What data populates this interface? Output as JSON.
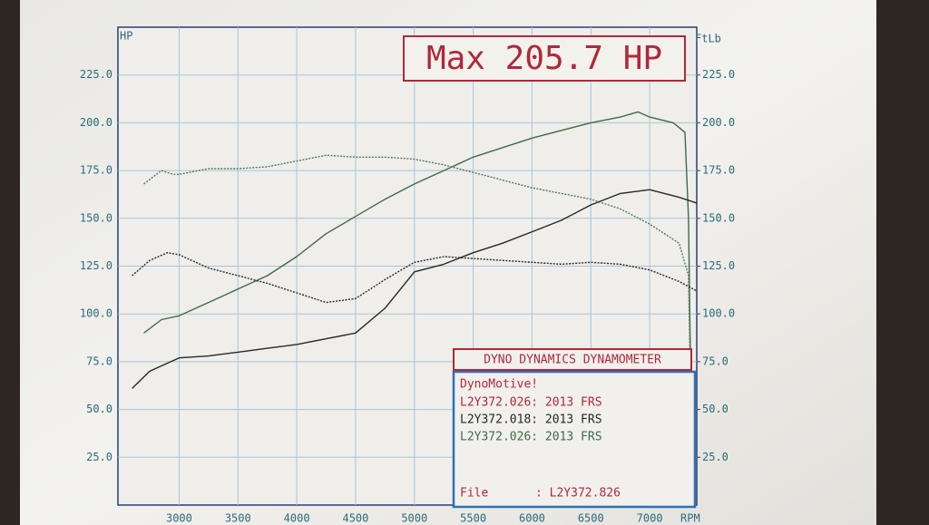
{
  "chart_data": {
    "type": "line",
    "title": "Max 205.7 HP",
    "y_label": "HP",
    "y2_label": "FtLb",
    "x_label": "RPM",
    "xlim": [
      2480,
      7400
    ],
    "xticks": [
      3000,
      3500,
      4000,
      4500,
      5000,
      5500,
      6000,
      6500,
      7000
    ],
    "ylim": [
      0,
      250
    ],
    "yticks": [
      {
        "value": 25,
        "label": "25.0"
      },
      {
        "value": 50,
        "label": "50.0"
      },
      {
        "value": 75,
        "label": "75.0"
      },
      {
        "value": 100,
        "label": "100.0"
      },
      {
        "value": 125,
        "label": "125.0"
      },
      {
        "value": 150,
        "label": "150.0"
      },
      {
        "value": 175,
        "label": "175.0"
      },
      {
        "value": 200,
        "label": "200.0"
      },
      {
        "value": 225,
        "label": "225.0"
      }
    ],
    "y2lim": [
      0,
      250
    ],
    "y2ticks": [
      {
        "value": 25,
        "label": "25.0"
      },
      {
        "value": 50,
        "label": "50.0"
      },
      {
        "value": 75,
        "label": "75.0"
      },
      {
        "value": 100,
        "label": "100.0"
      },
      {
        "value": 125,
        "label": "125.0"
      },
      {
        "value": 150,
        "label": "150.0"
      },
      {
        "value": 175,
        "label": "175.0"
      },
      {
        "value": 200,
        "label": "200.0"
      },
      {
        "value": 225,
        "label": "225.0"
      }
    ],
    "grid": true,
    "series": [
      {
        "color": "#3f6a4c",
        "style": "solid",
        "x": [
          2700,
          2850,
          3000,
          3250,
          3500,
          3750,
          4000,
          4250,
          4500,
          4750,
          5000,
          5250,
          5500,
          5750,
          6000,
          6250,
          6500,
          6750,
          6900,
          7000,
          7200,
          7300,
          7330,
          7350
        ],
        "values": [
          90,
          97,
          99,
          106,
          113,
          120,
          130,
          142,
          151,
          160,
          168,
          175,
          182,
          187,
          192,
          196,
          200,
          203,
          205.7,
          203,
          200,
          195,
          150,
          60
        ]
      },
      {
        "color": "#4f7a5c",
        "style": "dotted",
        "x": [
          2700,
          2850,
          2950,
          3000,
          3250,
          3500,
          3750,
          4000,
          4250,
          4500,
          4750,
          5000,
          5250,
          5500,
          5750,
          6000,
          6250,
          6500,
          6750,
          7000,
          7250,
          7330,
          7350
        ],
        "values": [
          168,
          175,
          173,
          173,
          176,
          176,
          177,
          180,
          183,
          182,
          182,
          181,
          178,
          174,
          170,
          166,
          163,
          160,
          155,
          147,
          137,
          120,
          50
        ]
      },
      {
        "color": "#2a2622",
        "style": "dotted",
        "x": [
          2600,
          2750,
          2900,
          3000,
          3250,
          3500,
          3750,
          4000,
          4250,
          4500,
          4750,
          5000,
          5250,
          5500,
          5750,
          6000,
          6250,
          6500,
          6750,
          7000,
          7250,
          7400
        ],
        "values": [
          120,
          128,
          132,
          131,
          124,
          120,
          116,
          111,
          106,
          108,
          118,
          127,
          130,
          129,
          128,
          127,
          126,
          127,
          126,
          123,
          117,
          112
        ]
      },
      {
        "color": "#2a2622",
        "style": "solid",
        "x": [
          2600,
          2750,
          3000,
          3250,
          3500,
          3750,
          4000,
          4250,
          4500,
          4750,
          5000,
          5250,
          5500,
          5750,
          6000,
          6250,
          6500,
          6750,
          7000,
          7250,
          7400
        ],
        "values": [
          61,
          70,
          77,
          78,
          80,
          82,
          84,
          87,
          90,
          103,
          122,
          126,
          132,
          137,
          143,
          149,
          157,
          163,
          165,
          161,
          158
        ]
      }
    ],
    "info_box": {
      "title": "DYNO DYNAMICS DYNAMOMETER",
      "header": "DynoMotive!",
      "entries": [
        {
          "text": "L2Y372.026: 2013 FRS",
          "color": "#b0283a"
        },
        {
          "text": "L2Y372.018: 2013 FRS",
          "color": "#2a2622"
        },
        {
          "text": "L2Y372.026: 2013 FRS",
          "color": "#3f6a4c"
        }
      ],
      "file_label": "File",
      "file_value": ": L2Y372.826"
    }
  }
}
